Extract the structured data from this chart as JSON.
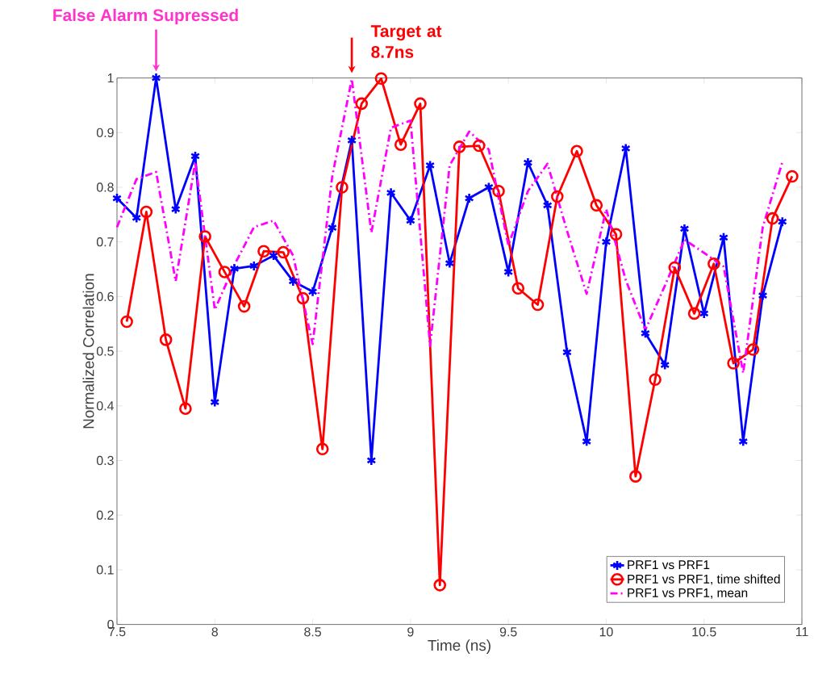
{
  "chart_data": {
    "type": "line",
    "xlabel": "Time (ns)",
    "ylabel": "Normalized Correlation",
    "xlim": [
      7.5,
      11
    ],
    "ylim": [
      0,
      1
    ],
    "xticks": [
      7.5,
      8,
      8.5,
      9,
      9.5,
      10,
      10.5,
      11
    ],
    "yticks": [
      0,
      0.1,
      0.2,
      0.3,
      0.4,
      0.5,
      0.6,
      0.7,
      0.8,
      0.9,
      1
    ],
    "legend": "bottom right",
    "annotations": [
      "False Alarm Supressed",
      {
        "text": "Target at 8.7ns",
        "x": 8.7,
        "y": 1.0
      }
    ],
    "series": [
      {
        "name": "PRF1 vs PRF1",
        "color": "#0000ff",
        "marker": "cross",
        "line_style": "solid",
        "x": [
          7.5,
          7.6,
          7.7,
          7.8,
          7.9,
          8.0,
          8.1,
          8.2,
          8.3,
          8.4,
          8.5,
          8.6,
          8.7,
          8.8,
          8.9,
          9.0,
          9.1,
          9.2,
          9.3,
          9.4,
          9.5,
          9.6,
          9.7,
          9.8,
          9.9,
          10.0,
          10.1,
          10.2,
          10.3,
          10.4,
          10.5,
          10.6,
          10.7,
          10.8,
          10.9
        ],
        "values": [
          0.78,
          0.744,
          1.0,
          0.76,
          0.857,
          0.407,
          0.651,
          0.656,
          0.675,
          0.628,
          0.609,
          0.726,
          0.886,
          0.3,
          0.79,
          0.739,
          0.84,
          0.661,
          0.78,
          0.8,
          0.645,
          0.845,
          0.767,
          0.498,
          0.335,
          0.7,
          0.871,
          0.533,
          0.475,
          0.724,
          0.569,
          0.708,
          0.335,
          0.602,
          0.737
        ]
      },
      {
        "name": "PRF1 vs PRF1, time shifted",
        "color": "#ff0000",
        "marker": "circle",
        "line_style": "solid",
        "x": [
          7.55,
          7.65,
          7.75,
          7.85,
          7.95,
          8.05,
          8.15,
          8.25,
          8.35,
          8.45,
          8.55,
          8.65,
          8.75,
          8.85,
          8.95,
          9.05,
          9.15,
          9.25,
          9.35,
          9.45,
          9.55,
          9.65,
          9.75,
          9.85,
          9.95,
          10.05,
          10.15,
          10.25,
          10.35,
          10.45,
          10.55,
          10.65,
          10.75,
          10.85,
          10.95
        ],
        "values": [
          0.554,
          0.755,
          0.521,
          0.395,
          0.71,
          0.645,
          0.582,
          0.683,
          0.681,
          0.597,
          0.321,
          0.8,
          0.953,
          0.999,
          0.878,
          0.953,
          0.072,
          0.874,
          0.876,
          0.793,
          0.615,
          0.585,
          0.783,
          0.866,
          0.767,
          0.714,
          0.271,
          0.448,
          0.653,
          0.569,
          0.66,
          0.478,
          0.503,
          0.743,
          0.82
        ]
      },
      {
        "name": "PRF1 vs PRF1, mean",
        "color": "#ff00ff",
        "marker": "none",
        "line_style": "dashdot",
        "x": [
          7.5,
          7.6,
          7.7,
          7.8,
          7.9,
          8.0,
          8.1,
          8.2,
          8.3,
          8.4,
          8.5,
          8.6,
          8.7,
          8.8,
          8.9,
          9.0,
          9.1,
          9.2,
          9.3,
          9.4,
          9.5,
          9.6,
          9.7,
          9.8,
          9.9,
          10.0,
          10.1,
          10.2,
          10.3,
          10.4,
          10.5,
          10.6,
          10.7,
          10.8,
          10.9
        ],
        "values": [
          0.727,
          0.815,
          0.828,
          0.628,
          0.846,
          0.576,
          0.658,
          0.727,
          0.739,
          0.675,
          0.513,
          0.82,
          0.998,
          0.717,
          0.909,
          0.922,
          0.51,
          0.84,
          0.902,
          0.869,
          0.694,
          0.793,
          0.843,
          0.72,
          0.605,
          0.76,
          0.63,
          0.539,
          0.62,
          0.704,
          0.68,
          0.655,
          0.46,
          0.727,
          0.846
        ]
      }
    ]
  }
}
